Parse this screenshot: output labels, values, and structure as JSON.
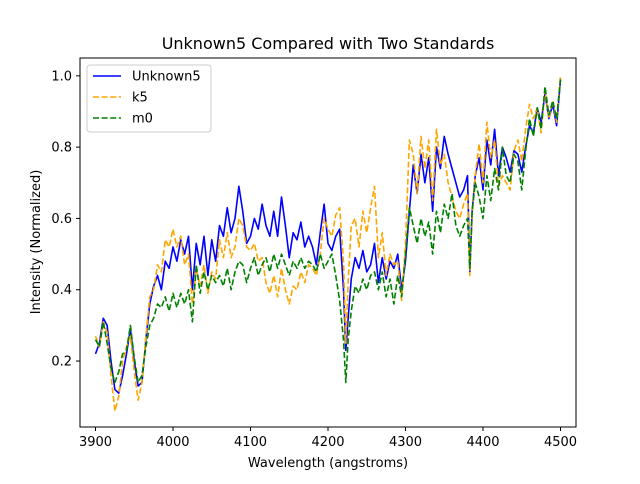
{
  "chart_data": {
    "type": "line",
    "title": "Unknown5 Compared with Two Standards",
    "xlabel": "Wavelength (angstroms)",
    "ylabel": "Intensity (Normalized)",
    "xlim": [
      3880,
      4520
    ],
    "ylim": [
      0.015,
      1.05
    ],
    "xticks": [
      "3900",
      "4000",
      "4100",
      "4200",
      "4300",
      "4400",
      "4500"
    ],
    "yticks": [
      "0.2",
      "0.4",
      "0.6",
      "0.8",
      "1.0"
    ],
    "grid": false,
    "legend_position": "top-left",
    "series": [
      {
        "name": "Unknown5",
        "color": "#0000ff",
        "dash": "solid",
        "x": [
          3900,
          3905,
          3910,
          3915,
          3920,
          3925,
          3930,
          3935,
          3940,
          3945,
          3950,
          3955,
          3960,
          3965,
          3970,
          3975,
          3980,
          3985,
          3990,
          3995,
          4000,
          4005,
          4010,
          4015,
          4020,
          4025,
          4030,
          4035,
          4040,
          4045,
          4050,
          4055,
          4060,
          4065,
          4070,
          4075,
          4080,
          4085,
          4090,
          4095,
          4100,
          4105,
          4110,
          4115,
          4120,
          4125,
          4130,
          4135,
          4140,
          4145,
          4150,
          4155,
          4160,
          4165,
          4170,
          4175,
          4180,
          4185,
          4190,
          4195,
          4200,
          4205,
          4210,
          4215,
          4220,
          4223,
          4226,
          4230,
          4235,
          4240,
          4245,
          4250,
          4255,
          4260,
          4265,
          4270,
          4275,
          4280,
          4285,
          4290,
          4295,
          4300,
          4305,
          4310,
          4315,
          4320,
          4325,
          4330,
          4335,
          4340,
          4345,
          4350,
          4355,
          4360,
          4365,
          4370,
          4375,
          4380,
          4383,
          4386,
          4390,
          4395,
          4400,
          4405,
          4410,
          4415,
          4420,
          4425,
          4430,
          4435,
          4440,
          4445,
          4450,
          4455,
          4460,
          4465,
          4470,
          4475,
          4480,
          4485,
          4490,
          4495,
          4500
        ],
        "y": [
          0.22,
          0.25,
          0.32,
          0.3,
          0.2,
          0.12,
          0.11,
          0.16,
          0.22,
          0.29,
          0.2,
          0.13,
          0.14,
          0.26,
          0.36,
          0.41,
          0.44,
          0.4,
          0.48,
          0.46,
          0.52,
          0.48,
          0.54,
          0.5,
          0.55,
          0.4,
          0.53,
          0.47,
          0.55,
          0.44,
          0.54,
          0.48,
          0.58,
          0.55,
          0.63,
          0.56,
          0.6,
          0.69,
          0.62,
          0.53,
          0.55,
          0.6,
          0.57,
          0.64,
          0.58,
          0.55,
          0.62,
          0.55,
          0.66,
          0.58,
          0.49,
          0.56,
          0.54,
          0.59,
          0.52,
          0.55,
          0.52,
          0.47,
          0.56,
          0.64,
          0.53,
          0.51,
          0.55,
          0.57,
          0.4,
          0.23,
          0.32,
          0.43,
          0.49,
          0.46,
          0.51,
          0.45,
          0.47,
          0.53,
          0.42,
          0.49,
          0.43,
          0.48,
          0.46,
          0.5,
          0.4,
          0.48,
          0.62,
          0.75,
          0.67,
          0.78,
          0.7,
          0.77,
          0.62,
          0.8,
          0.74,
          0.83,
          0.78,
          0.74,
          0.7,
          0.66,
          0.68,
          0.72,
          0.45,
          0.62,
          0.72,
          0.77,
          0.68,
          0.82,
          0.75,
          0.85,
          0.72,
          0.8,
          0.77,
          0.73,
          0.79,
          0.78,
          0.73,
          0.8,
          0.86,
          0.84,
          0.91,
          0.87,
          0.95,
          0.88,
          0.92,
          0.86,
          0.99
        ]
      },
      {
        "name": "k5",
        "color": "#ffa500",
        "dash": "dashed",
        "x": [
          3900,
          3905,
          3910,
          3915,
          3920,
          3925,
          3930,
          3935,
          3940,
          3945,
          3950,
          3955,
          3960,
          3965,
          3970,
          3975,
          3980,
          3985,
          3990,
          3995,
          4000,
          4005,
          4010,
          4015,
          4020,
          4025,
          4030,
          4035,
          4040,
          4045,
          4050,
          4055,
          4060,
          4065,
          4070,
          4075,
          4080,
          4085,
          4090,
          4095,
          4100,
          4105,
          4110,
          4115,
          4120,
          4125,
          4130,
          4135,
          4140,
          4145,
          4150,
          4155,
          4160,
          4165,
          4170,
          4175,
          4180,
          4185,
          4190,
          4195,
          4200,
          4205,
          4210,
          4215,
          4220,
          4223,
          4226,
          4230,
          4235,
          4240,
          4245,
          4250,
          4255,
          4260,
          4265,
          4270,
          4275,
          4280,
          4285,
          4290,
          4295,
          4300,
          4305,
          4310,
          4315,
          4320,
          4325,
          4330,
          4335,
          4340,
          4345,
          4350,
          4355,
          4360,
          4365,
          4370,
          4375,
          4380,
          4383,
          4386,
          4390,
          4395,
          4400,
          4405,
          4410,
          4415,
          4420,
          4425,
          4430,
          4435,
          4440,
          4445,
          4450,
          4455,
          4460,
          4465,
          4470,
          4475,
          4480,
          4485,
          4490,
          4495,
          4500
        ],
        "y": [
          0.27,
          0.24,
          0.31,
          0.28,
          0.16,
          0.06,
          0.1,
          0.2,
          0.24,
          0.27,
          0.17,
          0.09,
          0.14,
          0.27,
          0.38,
          0.4,
          0.47,
          0.45,
          0.54,
          0.52,
          0.57,
          0.52,
          0.55,
          0.47,
          0.5,
          0.36,
          0.46,
          0.41,
          0.47,
          0.39,
          0.45,
          0.43,
          0.54,
          0.49,
          0.56,
          0.49,
          0.52,
          0.6,
          0.58,
          0.52,
          0.51,
          0.53,
          0.48,
          0.49,
          0.42,
          0.39,
          0.44,
          0.38,
          0.46,
          0.4,
          0.36,
          0.41,
          0.4,
          0.45,
          0.42,
          0.47,
          0.46,
          0.44,
          0.5,
          0.6,
          0.57,
          0.55,
          0.61,
          0.63,
          0.48,
          0.25,
          0.42,
          0.58,
          0.6,
          0.52,
          0.62,
          0.56,
          0.63,
          0.69,
          0.49,
          0.56,
          0.44,
          0.5,
          0.47,
          0.48,
          0.37,
          0.53,
          0.82,
          0.78,
          0.67,
          0.83,
          0.74,
          0.82,
          0.65,
          0.85,
          0.75,
          0.78,
          0.7,
          0.66,
          0.62,
          0.6,
          0.64,
          0.67,
          0.44,
          0.61,
          0.72,
          0.81,
          0.7,
          0.87,
          0.77,
          0.82,
          0.69,
          0.72,
          0.7,
          0.68,
          0.79,
          0.82,
          0.76,
          0.85,
          0.92,
          0.88,
          0.91,
          0.84,
          0.96,
          0.88,
          0.93,
          0.87,
          1.0
        ]
      },
      {
        "name": "m0",
        "color": "#008000",
        "dash": "dashed",
        "x": [
          3900,
          3905,
          3910,
          3915,
          3920,
          3925,
          3930,
          3935,
          3940,
          3945,
          3950,
          3955,
          3960,
          3965,
          3970,
          3975,
          3980,
          3985,
          3990,
          3995,
          4000,
          4005,
          4010,
          4015,
          4020,
          4025,
          4030,
          4035,
          4040,
          4045,
          4050,
          4055,
          4060,
          4065,
          4070,
          4075,
          4080,
          4085,
          4090,
          4095,
          4100,
          4105,
          4110,
          4115,
          4120,
          4125,
          4130,
          4135,
          4140,
          4145,
          4150,
          4155,
          4160,
          4165,
          4170,
          4175,
          4180,
          4185,
          4190,
          4195,
          4200,
          4205,
          4210,
          4215,
          4220,
          4223,
          4226,
          4230,
          4235,
          4240,
          4245,
          4250,
          4255,
          4260,
          4265,
          4270,
          4275,
          4280,
          4285,
          4290,
          4295,
          4300,
          4305,
          4310,
          4315,
          4320,
          4325,
          4330,
          4335,
          4340,
          4345,
          4350,
          4355,
          4360,
          4365,
          4370,
          4375,
          4380,
          4383,
          4386,
          4390,
          4395,
          4400,
          4405,
          4410,
          4415,
          4420,
          4425,
          4430,
          4435,
          4440,
          4445,
          4450,
          4455,
          4460,
          4465,
          4470,
          4475,
          4480,
          4485,
          4490,
          4495,
          4500
        ],
        "y": [
          0.26,
          0.24,
          0.31,
          0.25,
          0.18,
          0.14,
          0.17,
          0.22,
          0.23,
          0.3,
          0.21,
          0.14,
          0.16,
          0.24,
          0.3,
          0.32,
          0.36,
          0.35,
          0.38,
          0.34,
          0.39,
          0.35,
          0.39,
          0.36,
          0.4,
          0.31,
          0.47,
          0.39,
          0.45,
          0.4,
          0.44,
          0.42,
          0.44,
          0.41,
          0.46,
          0.4,
          0.45,
          0.48,
          0.47,
          0.42,
          0.46,
          0.49,
          0.44,
          0.47,
          0.49,
          0.45,
          0.5,
          0.46,
          0.5,
          0.47,
          0.44,
          0.48,
          0.46,
          0.49,
          0.46,
          0.48,
          0.47,
          0.45,
          0.5,
          0.46,
          0.48,
          0.5,
          0.44,
          0.37,
          0.26,
          0.14,
          0.26,
          0.34,
          0.41,
          0.39,
          0.43,
          0.4,
          0.44,
          0.45,
          0.4,
          0.45,
          0.38,
          0.43,
          0.36,
          0.44,
          0.38,
          0.5,
          0.63,
          0.58,
          0.53,
          0.6,
          0.55,
          0.59,
          0.5,
          0.62,
          0.56,
          0.64,
          0.6,
          0.67,
          0.58,
          0.55,
          0.58,
          0.6,
          0.46,
          0.62,
          0.7,
          0.66,
          0.6,
          0.72,
          0.65,
          0.74,
          0.68,
          0.8,
          0.72,
          0.7,
          0.78,
          0.76,
          0.68,
          0.79,
          0.88,
          0.83,
          0.91,
          0.85,
          0.97,
          0.89,
          0.93,
          0.88,
          0.99
        ]
      }
    ]
  }
}
